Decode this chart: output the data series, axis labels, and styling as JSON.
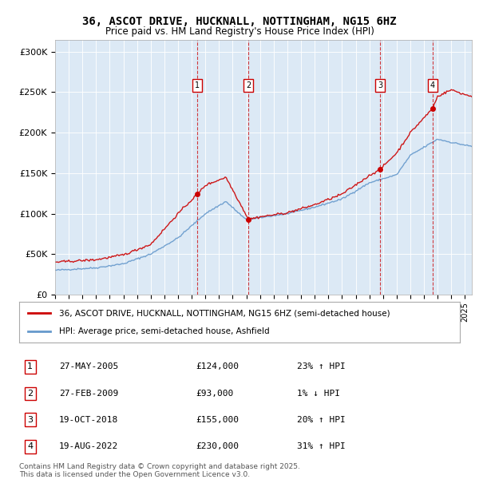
{
  "title": "36, ASCOT DRIVE, HUCKNALL, NOTTINGHAM, NG15 6HZ",
  "subtitle": "Price paid vs. HM Land Registry's House Price Index (HPI)",
  "ylabel_ticks": [
    "£0",
    "£50K",
    "£100K",
    "£150K",
    "£200K",
    "£250K",
    "£300K"
  ],
  "ytick_values": [
    0,
    50000,
    100000,
    150000,
    200000,
    250000,
    300000
  ],
  "ylim": [
    0,
    315000
  ],
  "xlim_start": 1995.0,
  "xlim_end": 2025.5,
  "color_property": "#cc0000",
  "color_hpi": "#6699cc",
  "transactions": [
    {
      "date_num": 2005.41,
      "price": 124000,
      "label": "1"
    },
    {
      "date_num": 2009.16,
      "price": 93000,
      "label": "2"
    },
    {
      "date_num": 2018.8,
      "price": 155000,
      "label": "3"
    },
    {
      "date_num": 2022.63,
      "price": 230000,
      "label": "4"
    }
  ],
  "table_rows": [
    {
      "num": "1",
      "date": "27-MAY-2005",
      "price": "£124,000",
      "hpi": "23% ↑ HPI"
    },
    {
      "num": "2",
      "date": "27-FEB-2009",
      "price": "£93,000",
      "hpi": "1% ↓ HPI"
    },
    {
      "num": "3",
      "date": "19-OCT-2018",
      "price": "£155,000",
      "hpi": "20% ↑ HPI"
    },
    {
      "num": "4",
      "date": "19-AUG-2022",
      "price": "£230,000",
      "hpi": "31% ↑ HPI"
    }
  ],
  "footer": "Contains HM Land Registry data © Crown copyright and database right 2025.\nThis data is licensed under the Open Government Licence v3.0.",
  "legend_property": "36, ASCOT DRIVE, HUCKNALL, NOTTINGHAM, NG15 6HZ (semi-detached house)",
  "legend_hpi": "HPI: Average price, semi-detached house, Ashfield",
  "background_chart": "#dce9f5",
  "background_fig": "#ffffff",
  "hpi_key_dates": [
    1995,
    1998,
    2000,
    2002,
    2004,
    2006,
    2007.5,
    2009,
    2010,
    2012,
    2014,
    2016,
    2018,
    2020,
    2021,
    2022,
    2023,
    2024,
    2025.5
  ],
  "hpi_key_vals": [
    30000,
    33000,
    38000,
    50000,
    70000,
    100000,
    115000,
    92000,
    95000,
    100000,
    108000,
    118000,
    138000,
    148000,
    172000,
    182000,
    192000,
    188000,
    183000
  ],
  "prop_key_dates": [
    1995,
    1998,
    2000,
    2002,
    2004,
    2005.41,
    2006,
    2007.5,
    2009.16,
    2010,
    2012,
    2014,
    2016,
    2018,
    2018.8,
    2020,
    2021,
    2022.63,
    2023,
    2024,
    2025,
    2025.5
  ],
  "prop_key_vals": [
    40000,
    43000,
    49000,
    62000,
    100000,
    124000,
    135000,
    145000,
    93000,
    96000,
    101000,
    111000,
    124000,
    147000,
    155000,
    175000,
    200000,
    230000,
    245000,
    253000,
    247000,
    245000
  ]
}
